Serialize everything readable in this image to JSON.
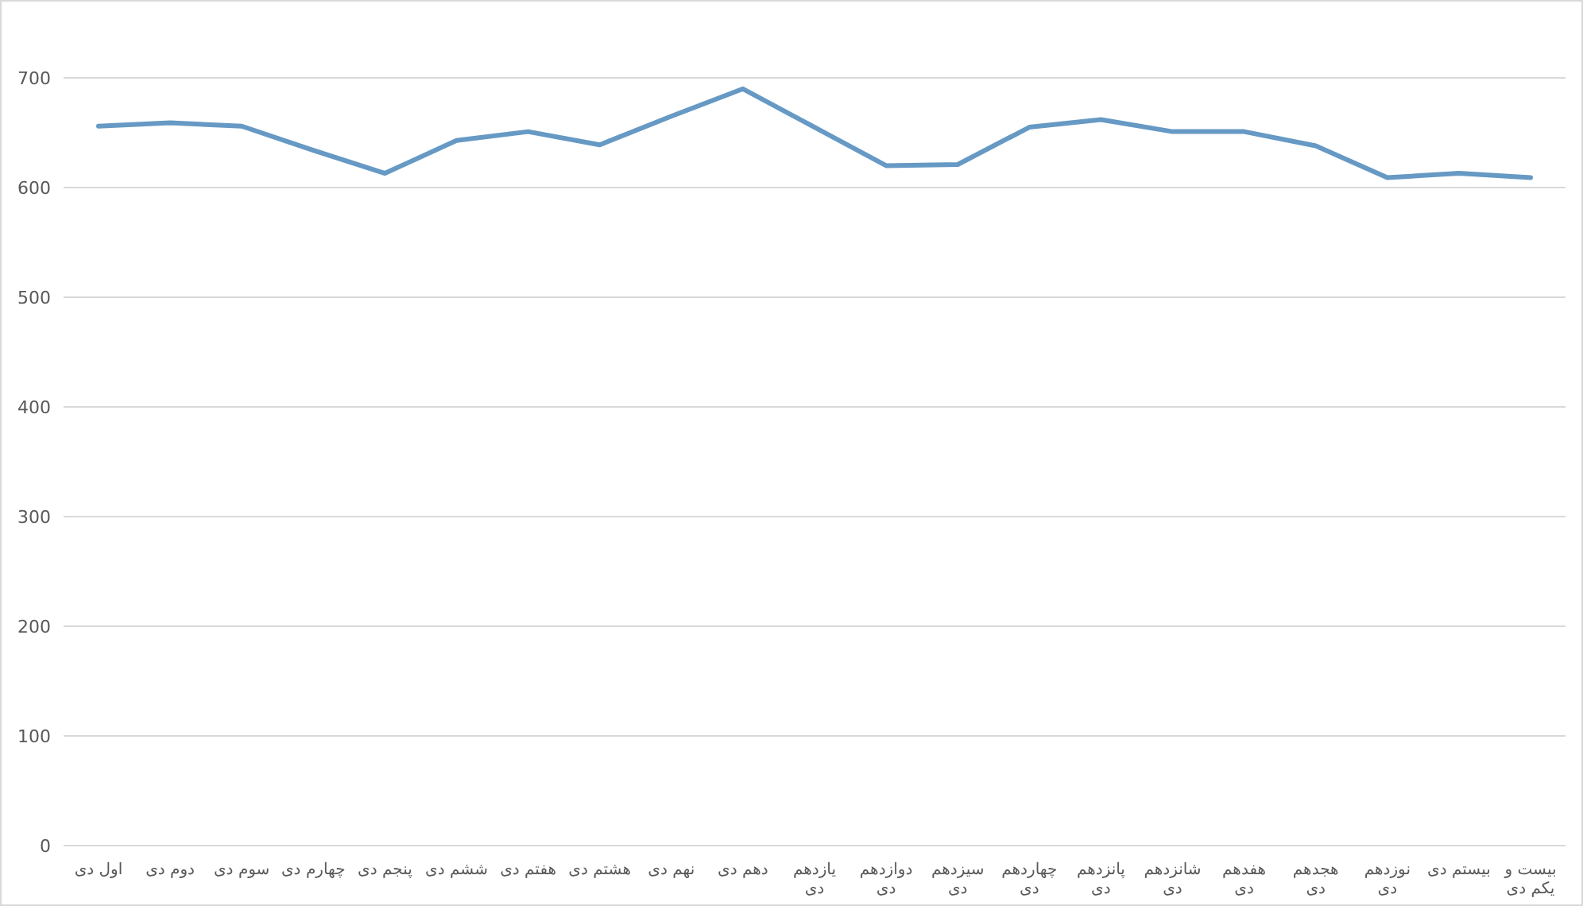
{
  "chart_data": {
    "type": "line",
    "categories": [
      "اول دی",
      "دوم دی",
      "سوم دی",
      "چهارم دی",
      "پنجم دی",
      "ششم دی",
      "هفتم دی",
      "هشتم دی",
      "نهم دی",
      "دهم دی",
      "یازدهم دی",
      "دوازدهم دی",
      "سیزدهم دی",
      "چهاردهم دی",
      "پانزدهم دی",
      "شانزدهم دی",
      "هفدهم دی",
      "هجدهم دی",
      "نوزدهم دی",
      "بیستم دی",
      "بیست و یکم دی"
    ],
    "values": [
      656,
      659,
      656,
      634,
      613,
      643,
      651,
      639,
      665,
      690,
      655,
      620,
      621,
      655,
      662,
      651,
      651,
      638,
      609,
      613,
      609
    ],
    "color": "#6699c4",
    "ylim": [
      0,
      700
    ],
    "yticks": [
      0,
      100,
      200,
      300,
      400,
      500,
      600,
      700
    ],
    "grid": "y",
    "line_style": "solid"
  }
}
